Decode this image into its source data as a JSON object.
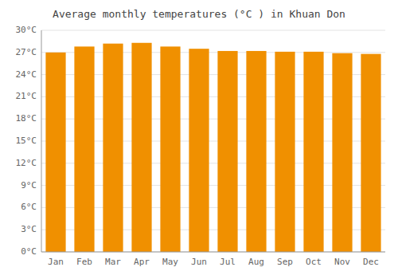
{
  "chart_data": {
    "type": "bar",
    "title": "Average monthly temperatures (°C ) in Khuan Don",
    "categories": [
      "Jan",
      "Feb",
      "Mar",
      "Apr",
      "May",
      "Jun",
      "Jul",
      "Aug",
      "Sep",
      "Oct",
      "Nov",
      "Dec"
    ],
    "values": [
      27.0,
      27.8,
      28.2,
      28.3,
      27.8,
      27.5,
      27.2,
      27.2,
      27.1,
      27.1,
      26.9,
      26.8
    ],
    "color": "#F09000",
    "ylim": [
      0,
      30
    ],
    "yticks": [
      {
        "value": 0,
        "label": "0°C"
      },
      {
        "value": 3,
        "label": "3°C"
      },
      {
        "value": 6,
        "label": "6°C"
      },
      {
        "value": 9,
        "label": "9°C"
      },
      {
        "value": 12,
        "label": "12°C"
      },
      {
        "value": 15,
        "label": "15°C"
      },
      {
        "value": 18,
        "label": "18°C"
      },
      {
        "value": 21,
        "label": "21°C"
      },
      {
        "value": 24,
        "label": "24°C"
      },
      {
        "value": 27,
        "label": "27°C"
      },
      {
        "value": 30,
        "label": "30°C"
      }
    ],
    "grid": true
  }
}
